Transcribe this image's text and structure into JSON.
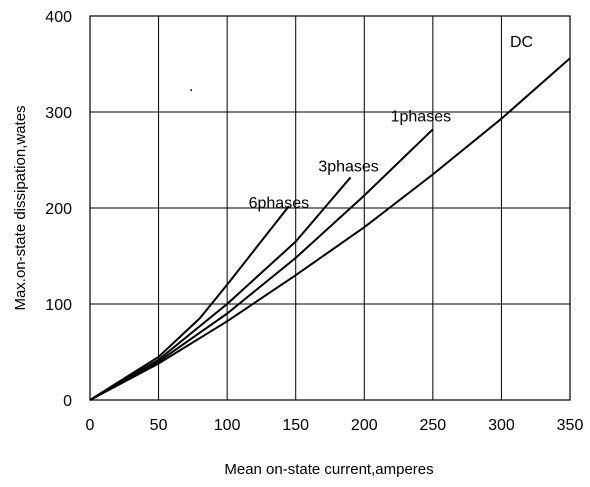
{
  "chart_data": {
    "type": "line",
    "title": "",
    "xlabel": "Mean on-state current,amperes",
    "ylabel": "Max.on-state dissipation,wates",
    "xlim": [
      0,
      350
    ],
    "ylim": [
      0,
      400
    ],
    "xticks": [
      0,
      50,
      100,
      150,
      200,
      250,
      300,
      350
    ],
    "yticks": [
      0,
      100,
      200,
      300,
      400
    ],
    "xtick_labels": [
      "0",
      "50",
      "100",
      "150",
      "200",
      "250",
      "300",
      "350"
    ],
    "ytick_labels": [
      "0",
      "100",
      "200",
      "300",
      "400"
    ],
    "grid": true,
    "stray_mark": ".",
    "series": [
      {
        "name": "DC",
        "x": [
          0,
          50,
          100,
          150,
          200,
          250,
          300,
          350
        ],
        "y": [
          0,
          38,
          82,
          130,
          180,
          235,
          293,
          356
        ]
      },
      {
        "name": "1phases",
        "x": [
          0,
          50,
          100,
          150,
          200,
          250
        ],
        "y": [
          0,
          40,
          90,
          148,
          213,
          282
        ]
      },
      {
        "name": "3phases",
        "x": [
          0,
          50,
          100,
          150,
          190
        ],
        "y": [
          0,
          42,
          100,
          165,
          232
        ]
      },
      {
        "name": "6phases",
        "x": [
          0,
          50,
          80,
          100,
          145
        ],
        "y": [
          0,
          45,
          85,
          120,
          202
        ]
      }
    ]
  }
}
